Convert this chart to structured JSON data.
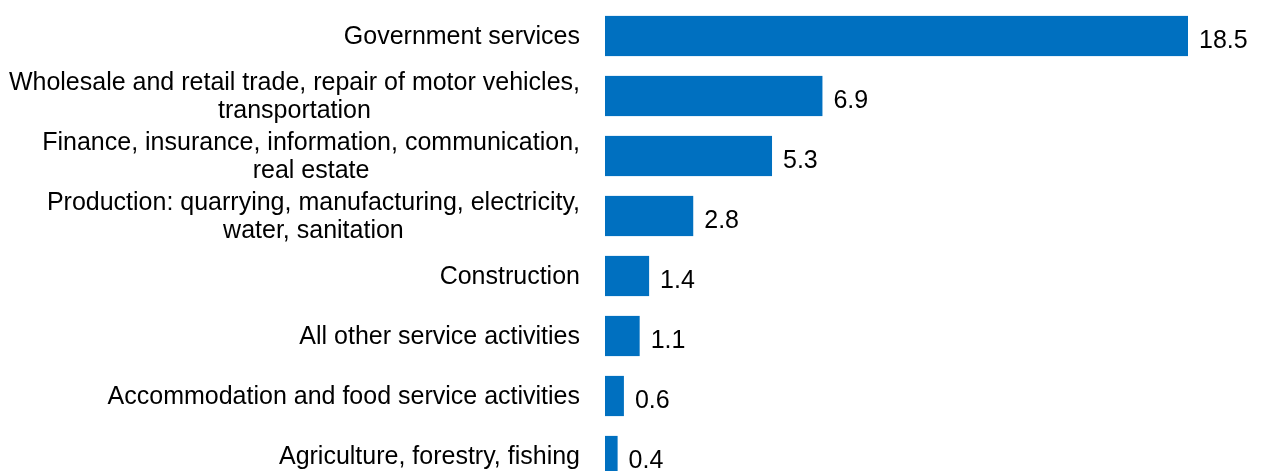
{
  "chart_data": {
    "type": "bar",
    "orientation": "horizontal",
    "categories": [
      "Government services",
      "Wholesale and retail trade, repair of motor vehicles, transportation",
      "Finance, insurance, information, communication, real estate",
      "Production: quarrying, manufacturing, electricity, water, sanitation",
      "Construction",
      "All other service activities",
      "Accommodation and food service activities",
      "Agriculture, forestry, fishing"
    ],
    "values": [
      18.5,
      6.9,
      5.3,
      2.8,
      1.4,
      1.1,
      0.6,
      0.4
    ],
    "color": "#0070c0",
    "data_labels": true
  }
}
